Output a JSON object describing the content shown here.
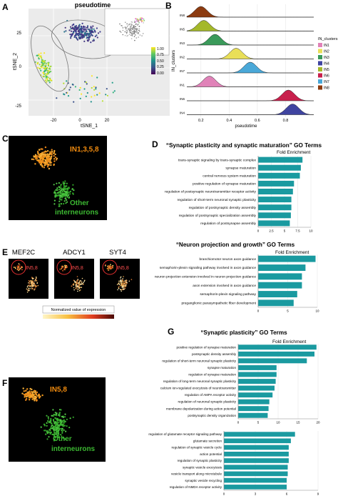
{
  "panel_letters": {
    "a": "A",
    "b": "B",
    "c": "C",
    "d": "D",
    "e": "E",
    "f": "F",
    "g": "G"
  },
  "panel_a": {
    "title": "pseudotime",
    "xlabel": "tSNE_1",
    "ylabel": "tSNE_2",
    "x_ticks": [
      "-20",
      "0",
      "20"
    ],
    "y_ticks": [
      "25",
      "0",
      "-25"
    ],
    "colorbar_ticks": [
      "1.00",
      "0.75",
      "0.50",
      "0.25",
      "0.00"
    ],
    "colorbar_colors": [
      "#fde725",
      "#5ec962",
      "#21918c",
      "#3b528b",
      "#440154"
    ],
    "dense_group_colors": [
      "#3b3b8f",
      "#46337e",
      "#365c8d",
      "#2a788e",
      "#443983"
    ],
    "mid_group_colors": [
      "#35b779",
      "#90d743",
      "#c8e020",
      "#fde725",
      "#6ece58"
    ],
    "sparse_group_colors": [
      "#21918c",
      "#35b779",
      "#fde725",
      "#3b528b",
      "#1f9e89",
      "#b5de2b"
    ]
  },
  "panel_b": {
    "xlabel": "pseudotime",
    "ylabel": "IN_clusters",
    "x_ticks": [
      "0.2",
      "0.4",
      "0.6",
      "0.8"
    ],
    "legend_title": "IN_clusters",
    "rows": [
      {
        "label": "IN8",
        "color": "#8c3b10",
        "peak": 0.2
      },
      {
        "label": "IN5",
        "color": "#a4b82a",
        "peak": 0.22
      },
      {
        "label": "IN3",
        "color": "#3a9a5a",
        "peak": 0.3
      },
      {
        "label": "IN2",
        "color": "#e9df58",
        "peak": 0.45
      },
      {
        "label": "IN7",
        "color": "#4aa8d8",
        "peak": 0.55
      },
      {
        "label": "IN1",
        "color": "#e082b8",
        "peak": 0.26
      },
      {
        "label": "IN6",
        "color": "#c8204c",
        "peak": 0.82
      },
      {
        "label": "IN4",
        "color": "#3f44a0",
        "peak": 0.85
      }
    ],
    "legend": [
      "IN1",
      "IN2",
      "IN3",
      "IN4",
      "IN5",
      "IN6",
      "IN7",
      "IN8"
    ]
  },
  "panel_c": {
    "cluster_label": "IN1,3,5,8",
    "other_label_1": "Other",
    "other_label_2": "interneurons"
  },
  "panel_e": {
    "genes": [
      "MEF2C",
      "ADCY1",
      "SYT4"
    ],
    "cluster_label": "IN5,8",
    "colorbar_label": "Normalized value of expression"
  },
  "panel_f": {
    "cluster_label": "IN5,8",
    "other_label_1": "Other",
    "other_label_2": "interneurons"
  },
  "chart_data": [
    {
      "type": "bar",
      "orientation": "horizontal",
      "title": "“Synaptic plasticity and synaptic maturation” GO Terms",
      "xlabel": "Fold Enrichment",
      "x_ticks": [
        "0",
        "2.5",
        "5",
        "7.5",
        "10"
      ],
      "xlim": [
        0,
        10
      ],
      "color": "#1a9aa0",
      "categories": [
        "trans-synaptic signaling by trans-synaptic complex",
        "synapse maturation",
        "central nervous system maturation",
        "positive regulation of synapse maturation",
        "regulation of postsynaptic neurotransmitter receptor activity",
        "regulation of short-term neuronal synaptic plasticity",
        "regulation of postsynaptic density assembly",
        "regulation of postsynaptic specialization assembly",
        "regulation of postsynapse assembly"
      ],
      "values": [
        8.4,
        8.1,
        7.9,
        6.8,
        6.6,
        6.3,
        6.3,
        6.2,
        6.0
      ]
    },
    {
      "type": "bar",
      "orientation": "horizontal",
      "title": "“Neuron projection and growth” GO Terms",
      "xlabel": "Fold Enrichment",
      "x_ticks": [
        "0",
        "5",
        "10"
      ],
      "xlim": [
        0,
        10
      ],
      "color": "#1a9aa0",
      "categories": [
        "branchiomotor neuron axon guidance",
        "semaphorin-plexin signaling pathway involved in axon guidance",
        "neuron projection extension involved in neuron projection guidance",
        "axon extension involved in axon guidance",
        "semaphorin-plexin signaling pathway",
        "preganglionic parasympathetic fiber development"
      ],
      "values": [
        9.7,
        8.0,
        7.4,
        7.4,
        6.6,
        6.0
      ]
    },
    {
      "type": "bar",
      "orientation": "horizontal",
      "title": "“Synaptic plasticity” GO Terms",
      "xlabel": "Fold Enrichment",
      "x_ticks": [
        "0",
        "5",
        "10",
        "15",
        "20"
      ],
      "xlim": [
        0,
        20
      ],
      "color": "#1a9aa0",
      "categories": [
        "positive regulation of synapse maturation",
        "postsynaptic density assembly",
        "regulation of short-term neuronal synaptic plasticity",
        "synapse maturation",
        "regulation of synapse maturation",
        "regulation of long-term neuronal synaptic plasticity",
        "calcium ion-regulated exocytosis of neurotransmitter",
        "regulation of AMPA receptor activity",
        "regulation of neuronal synaptic plasticity",
        "membrane depolarization during action potential",
        "postsynaptic density organization"
      ],
      "values": [
        19.6,
        19.1,
        17.2,
        9.6,
        9.6,
        9.4,
        9.1,
        8.6,
        7.8,
        7.6,
        7.4
      ]
    },
    {
      "type": "bar",
      "orientation": "horizontal",
      "title": "",
      "xlabel": "",
      "x_ticks": [
        "0",
        "3",
        "6",
        "9"
      ],
      "xlim": [
        0,
        9
      ],
      "color": "#1a9aa0",
      "categories": [
        "regulation of glutamate receptor signaling pathway",
        "glutamate secretion",
        "regulation of synaptic vesicle cycle",
        "action potential",
        "regulation of synaptic plasticity",
        "synaptic vesicle exocytosis",
        "vesicle transport along microtubule",
        "synaptic vesicle recycling",
        "regulation of NMDA receptor activity"
      ],
      "values": [
        6.8,
        6.4,
        6.2,
        6.2,
        6.2,
        6.1,
        6.1,
        6.0,
        6.0
      ]
    }
  ]
}
